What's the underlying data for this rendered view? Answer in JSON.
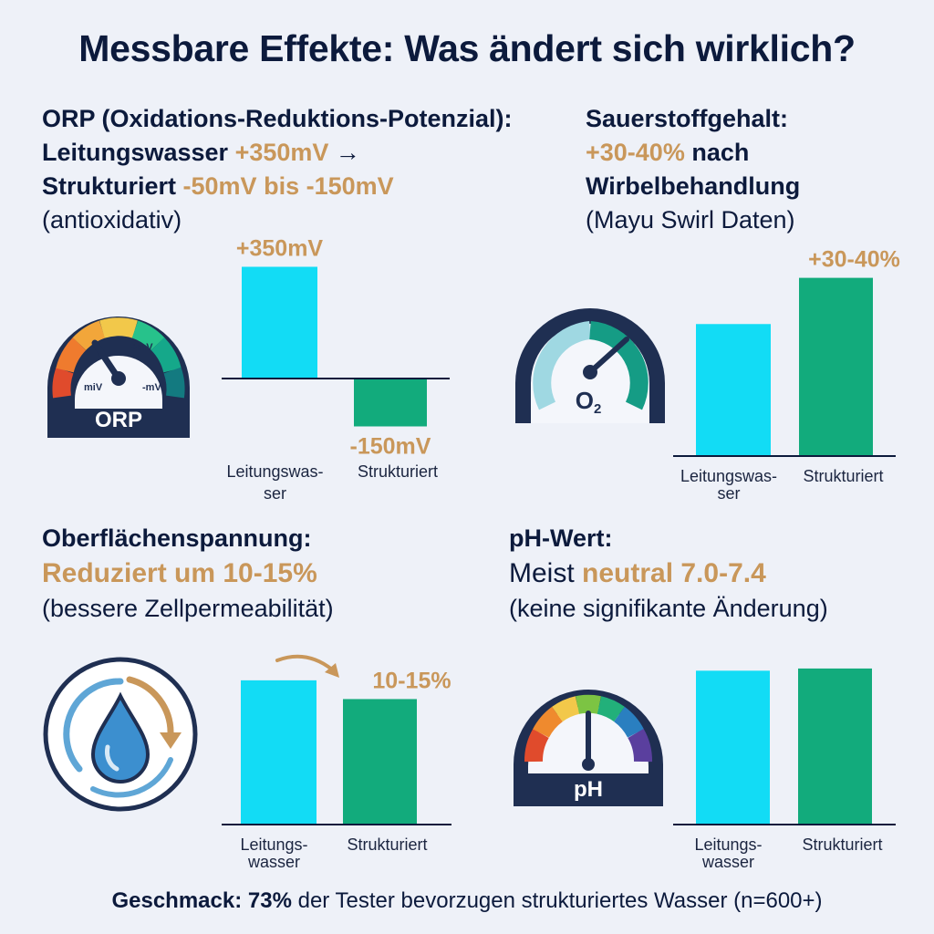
{
  "title": "Messbare Effekte: Was ändert sich wirklich?",
  "colors": {
    "tap": "#12dcf5",
    "structured": "#12ab7c",
    "highlight": "#c9975a",
    "text": "#0c1a3c",
    "background": "#eef1f8"
  },
  "orp": {
    "heading": "ORP (Oxidations-Reduktions-Potenzial):",
    "line2_prefix": "Leitungswasser ",
    "line2_value": "+350mV",
    "line2_arrow": " →",
    "line3_prefix": "Strukturiert ",
    "line3_value": "-50mV bis -150mV",
    "note": "(antioxidativ)",
    "gauge": {
      "icon": "orp-gauge-icon",
      "label": "ORP",
      "left_mark": "miV",
      "right_mark": "-mV",
      "top_mark": "+mV"
    }
  },
  "oxygen": {
    "heading": "Sauerstoffgehalt:",
    "value": "+30-40%",
    "value_suffix": " nach",
    "line3": "Wirbelbehandlung",
    "note": "(Mayu Swirl Daten)",
    "gauge": {
      "icon": "oxygen-gauge-icon",
      "label": "O",
      "label_sub": "2"
    }
  },
  "surface": {
    "heading": "Oberflächenspannung:",
    "value": "Reduziert um 10-15%",
    "note": "(bessere Zellpermeabilität)",
    "icon": "water-drop-cycle-icon"
  },
  "ph": {
    "heading": "pH-Wert:",
    "prefix": "Meist ",
    "value": "neutral 7.0-7.4",
    "note": "(keine signifikante Änderung)",
    "gauge": {
      "icon": "ph-gauge-icon",
      "label": "pH"
    }
  },
  "footer": {
    "bold": "Geschmack: 73%",
    "rest": " der Tester bevorzugen strukturiertes Wasser (n=600+)"
  },
  "chart_data": [
    {
      "type": "bar",
      "id": "orp",
      "categories": [
        [
          "Leitungswas-",
          "ser"
        ],
        [
          "Strukturiert"
        ]
      ],
      "values": [
        350,
        -150
      ],
      "value_labels": [
        "+350mV",
        "-150mV"
      ],
      "ylim": [
        -220,
        400
      ]
    },
    {
      "type": "bar",
      "id": "oxygen",
      "categories": [
        [
          "Leitungswas-",
          "ser"
        ],
        [
          "Strukturiert"
        ]
      ],
      "values": [
        100,
        135
      ],
      "value_labels": [
        "",
        "+30-40%"
      ],
      "ylim": [
        0,
        152
      ]
    },
    {
      "type": "bar",
      "id": "surface",
      "categories": [
        [
          "Leitungs-",
          "wasser"
        ],
        [
          "Strukturiert"
        ]
      ],
      "values": [
        100,
        87
      ],
      "value_labels": [
        "",
        "10-15%"
      ],
      "ylim": [
        0,
        117
      ]
    },
    {
      "type": "bar",
      "id": "ph",
      "categories": [
        [
          "Leitungs-",
          "wasser"
        ],
        [
          "Strukturiert"
        ]
      ],
      "values": [
        7.0,
        7.1
      ],
      "value_labels": [
        "",
        ""
      ],
      "ylim": [
        0,
        8.3
      ]
    }
  ]
}
